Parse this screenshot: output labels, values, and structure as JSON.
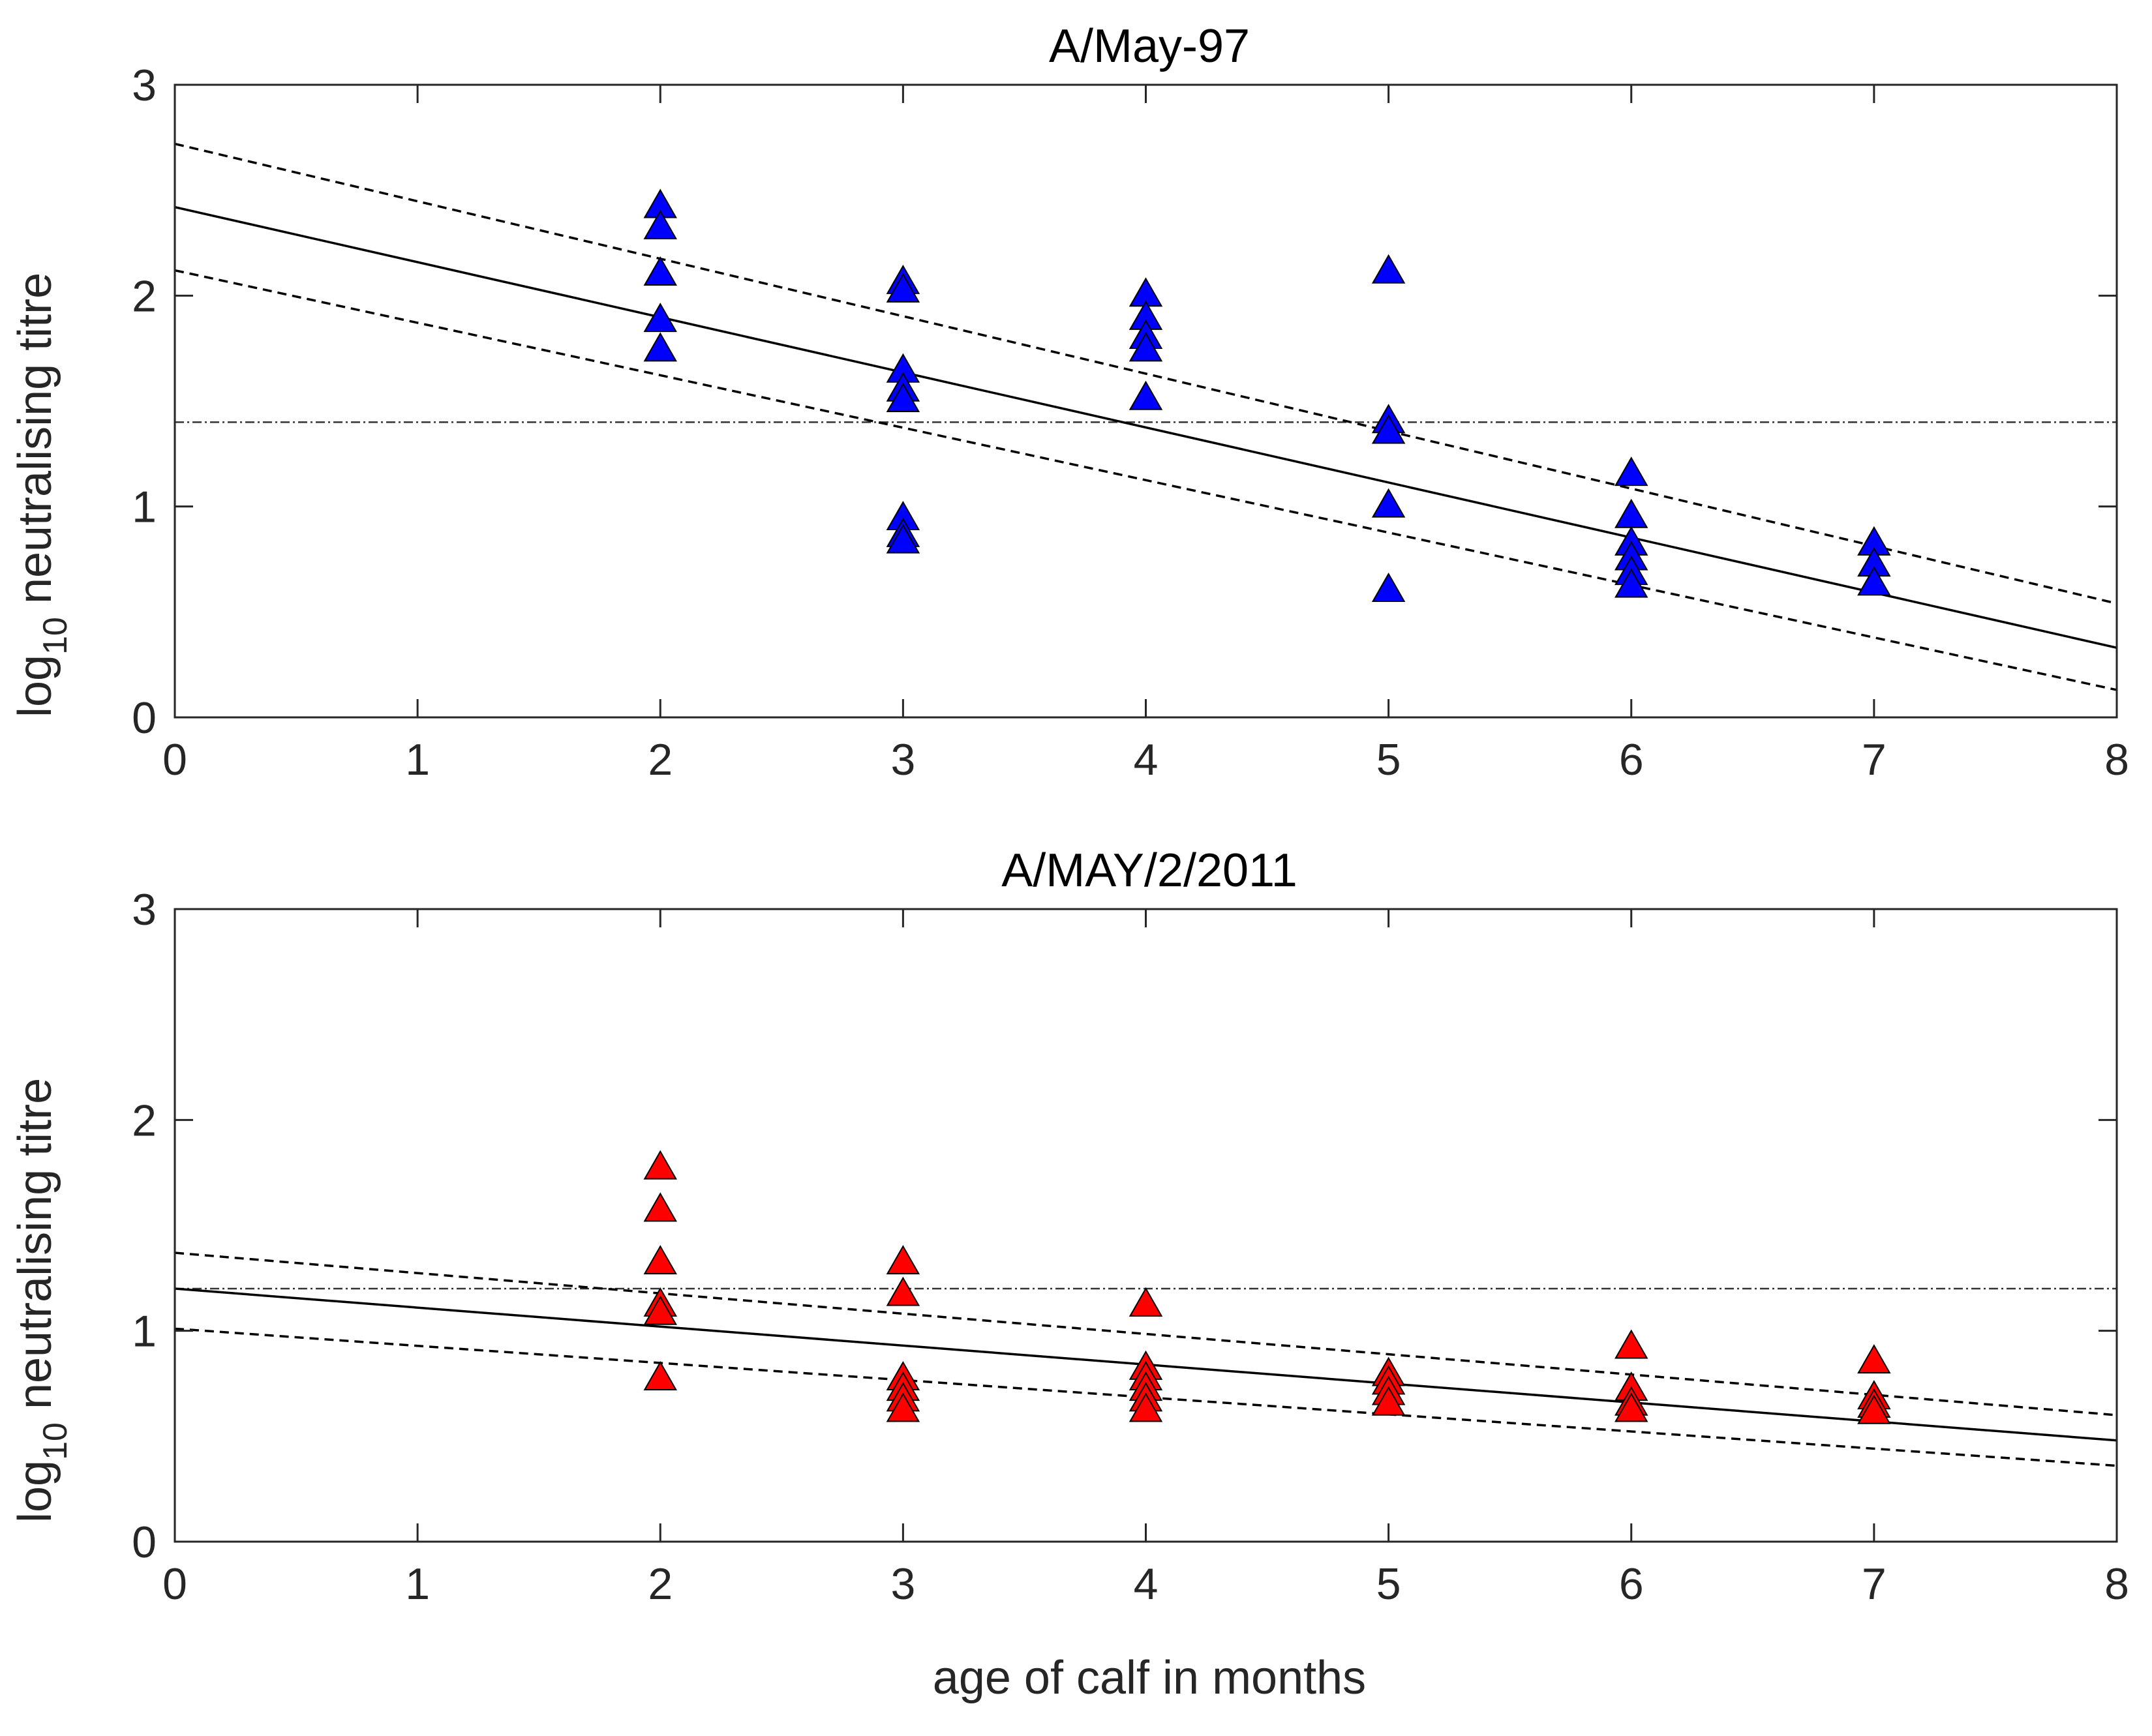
{
  "chart_data": [
    {
      "type": "scatter",
      "title": "A/May-97",
      "xlabel": "",
      "ylabel_main": "log",
      "ylabel_sub": "10",
      "ylabel_rest": " neutralising titre",
      "xlim": [
        0,
        8
      ],
      "ylim": [
        0,
        3
      ],
      "xticks": [
        "0",
        "1",
        "2",
        "3",
        "4",
        "5",
        "6",
        "7",
        "8"
      ],
      "yticks": [
        "0",
        "1",
        "2",
        "3"
      ],
      "marker": "triangle",
      "marker_color": "#0000ff",
      "points": [
        {
          "x": 2,
          "y": 2.42
        },
        {
          "x": 2,
          "y": 2.32
        },
        {
          "x": 2,
          "y": 2.1
        },
        {
          "x": 2,
          "y": 1.88
        },
        {
          "x": 2,
          "y": 1.74
        },
        {
          "x": 3,
          "y": 2.06
        },
        {
          "x": 3,
          "y": 2.02
        },
        {
          "x": 3,
          "y": 1.64
        },
        {
          "x": 3,
          "y": 1.55
        },
        {
          "x": 3,
          "y": 1.5
        },
        {
          "x": 3,
          "y": 0.94
        },
        {
          "x": 3,
          "y": 0.86
        },
        {
          "x": 3,
          "y": 0.83
        },
        {
          "x": 4,
          "y": 2.0
        },
        {
          "x": 4,
          "y": 1.89
        },
        {
          "x": 4,
          "y": 1.8
        },
        {
          "x": 4,
          "y": 1.74
        },
        {
          "x": 4,
          "y": 1.51
        },
        {
          "x": 5,
          "y": 2.11
        },
        {
          "x": 5,
          "y": 1.4
        },
        {
          "x": 5,
          "y": 1.35
        },
        {
          "x": 5,
          "y": 1.0
        },
        {
          "x": 5,
          "y": 0.6
        },
        {
          "x": 6,
          "y": 1.15
        },
        {
          "x": 6,
          "y": 0.95
        },
        {
          "x": 6,
          "y": 0.82
        },
        {
          "x": 6,
          "y": 0.75
        },
        {
          "x": 6,
          "y": 0.68
        },
        {
          "x": 6,
          "y": 0.62
        },
        {
          "x": 7,
          "y": 0.82
        },
        {
          "x": 7,
          "y": 0.72
        },
        {
          "x": 7,
          "y": 0.63
        }
      ],
      "fit_line": [
        [
          0,
          2.42
        ],
        [
          8,
          0.33
        ]
      ],
      "ci_upper": [
        [
          0,
          2.72
        ],
        [
          8,
          0.54
        ]
      ],
      "ci_lower": [
        [
          0,
          2.12
        ],
        [
          8,
          0.13
        ]
      ],
      "threshold": 1.4
    },
    {
      "type": "scatter",
      "title": "A/MAY/2/2011",
      "xlabel": "age of calf in months",
      "ylabel_main": "log",
      "ylabel_sub": "10",
      "ylabel_rest": " neutralising titre",
      "xlim": [
        0,
        8
      ],
      "ylim": [
        0,
        3
      ],
      "xticks": [
        "0",
        "1",
        "2",
        "3",
        "4",
        "5",
        "6",
        "7",
        "8"
      ],
      "yticks": [
        "0",
        "1",
        "2",
        "3"
      ],
      "marker": "triangle",
      "marker_color": "#ff0000",
      "points": [
        {
          "x": 2,
          "y": 1.77
        },
        {
          "x": 2,
          "y": 1.57
        },
        {
          "x": 2,
          "y": 1.32
        },
        {
          "x": 2,
          "y": 1.12
        },
        {
          "x": 2,
          "y": 1.08
        },
        {
          "x": 2,
          "y": 0.77
        },
        {
          "x": 3,
          "y": 1.32
        },
        {
          "x": 3,
          "y": 1.17
        },
        {
          "x": 3,
          "y": 0.77
        },
        {
          "x": 3,
          "y": 0.72
        },
        {
          "x": 3,
          "y": 0.67
        },
        {
          "x": 3,
          "y": 0.62
        },
        {
          "x": 4,
          "y": 1.12
        },
        {
          "x": 4,
          "y": 0.82
        },
        {
          "x": 4,
          "y": 0.77
        },
        {
          "x": 4,
          "y": 0.72
        },
        {
          "x": 4,
          "y": 0.67
        },
        {
          "x": 4,
          "y": 0.62
        },
        {
          "x": 5,
          "y": 0.79
        },
        {
          "x": 5,
          "y": 0.75
        },
        {
          "x": 5,
          "y": 0.7
        },
        {
          "x": 5,
          "y": 0.65
        },
        {
          "x": 6,
          "y": 0.92
        },
        {
          "x": 6,
          "y": 0.72
        },
        {
          "x": 6,
          "y": 0.65
        },
        {
          "x": 6,
          "y": 0.62
        },
        {
          "x": 7,
          "y": 0.85
        },
        {
          "x": 7,
          "y": 0.68
        },
        {
          "x": 7,
          "y": 0.64
        },
        {
          "x": 7,
          "y": 0.61
        }
      ],
      "fit_line": [
        [
          0,
          1.2
        ],
        [
          8,
          0.48
        ]
      ],
      "ci_upper": [
        [
          0,
          1.37
        ],
        [
          8,
          0.6
        ]
      ],
      "ci_lower": [
        [
          0,
          1.01
        ],
        [
          8,
          0.36
        ]
      ],
      "threshold": 1.2
    }
  ]
}
